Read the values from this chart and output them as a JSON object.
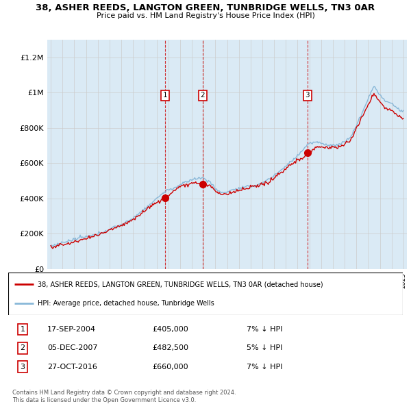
{
  "title": "38, ASHER REEDS, LANGTON GREEN, TUNBRIDGE WELLS, TN3 0AR",
  "subtitle": "Price paid vs. HM Land Registry's House Price Index (HPI)",
  "ylim": [
    0,
    1300000
  ],
  "yticks": [
    0,
    200000,
    400000,
    600000,
    800000,
    1000000,
    1200000
  ],
  "ytick_labels": [
    "£0",
    "£200K",
    "£400K",
    "£600K",
    "£800K",
    "£1M",
    "£1.2M"
  ],
  "sale_dates": [
    2004.72,
    2007.92,
    2016.83
  ],
  "sale_prices": [
    405000,
    482500,
    660000
  ],
  "sale_labels": [
    "1",
    "2",
    "3"
  ],
  "hpi_color": "#89b8d8",
  "hpi_fill_color": "#daeaf5",
  "price_color": "#cc0000",
  "sale_marker_color": "#cc0000",
  "vline_color": "#cc0000",
  "legend1_label": "38, ASHER REEDS, LANGTON GREEN, TUNBRIDGE WELLS, TN3 0AR (detached house)",
  "legend2_label": "HPI: Average price, detached house, Tunbridge Wells",
  "table_rows": [
    {
      "num": "1",
      "date": "17-SEP-2004",
      "price": "£405,000",
      "info": "7% ↓ HPI"
    },
    {
      "num": "2",
      "date": "05-DEC-2007",
      "price": "£482,500",
      "info": "5% ↓ HPI"
    },
    {
      "num": "3",
      "date": "27-OCT-2016",
      "price": "£660,000",
      "info": "7% ↓ HPI"
    }
  ],
  "footer": "Contains HM Land Registry data © Crown copyright and database right 2024.\nThis data is licensed under the Open Government Licence v3.0.",
  "plot_bg": "#daeaf5",
  "fig_bg": "#ffffff"
}
